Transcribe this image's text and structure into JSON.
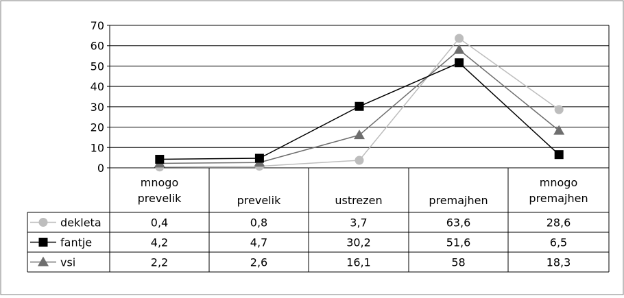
{
  "chart_data": {
    "type": "line",
    "categories": [
      [
        "mnogo",
        "prevelik"
      ],
      [
        "prevelik"
      ],
      [
        "ustrezen"
      ],
      [
        "premajhen"
      ],
      [
        "mnogo",
        "premajhen"
      ]
    ],
    "ylim": [
      0,
      70
    ],
    "yticks": [
      0,
      10,
      20,
      30,
      40,
      50,
      60,
      70
    ],
    "grid": true,
    "legend": "data-table-left",
    "series": [
      {
        "name": "dekleta",
        "marker": "circle",
        "color": "#bdbdbd",
        "values": [
          0.4,
          0.8,
          3.7,
          63.6,
          28.6
        ],
        "labels": [
          "0,4",
          "0,8",
          "3,7",
          "63,6",
          "28,6"
        ]
      },
      {
        "name": "fantje",
        "marker": "square",
        "color": "#000000",
        "values": [
          4.2,
          4.7,
          30.2,
          51.6,
          6.5
        ],
        "labels": [
          "4,2",
          "4,7",
          "30,2",
          "51,6",
          "6,5"
        ]
      },
      {
        "name": "vsi",
        "marker": "triangle",
        "color": "#6e6e6e",
        "values": [
          2.2,
          2.6,
          16.1,
          58,
          18.3
        ],
        "labels": [
          "2,2",
          "2,6",
          "16,1",
          "58",
          "18,3"
        ]
      }
    ]
  }
}
